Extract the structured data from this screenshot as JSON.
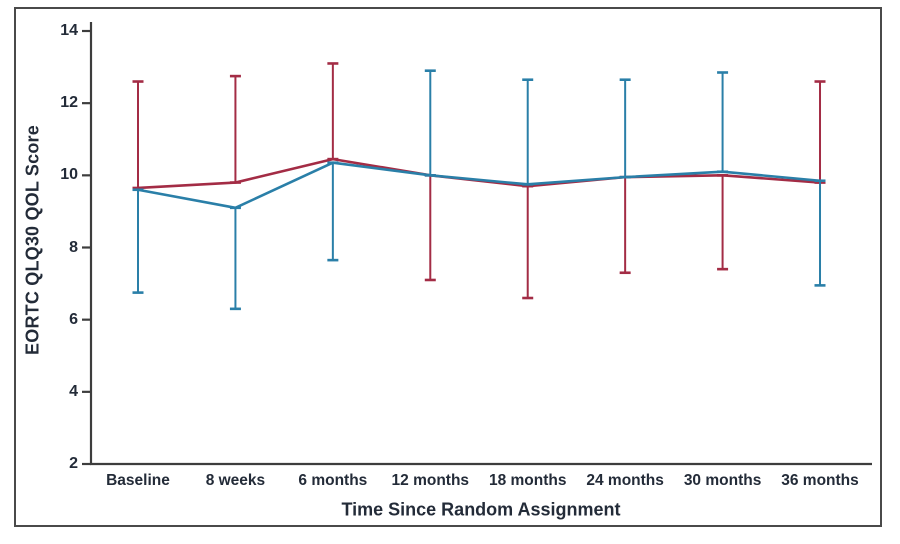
{
  "chart_data": {
    "type": "line",
    "title": "",
    "xlabel": "Time Since Random Assignment",
    "ylabel": "EORTC QLQ30 QOL Score",
    "categories": [
      "Baseline",
      "8 weeks",
      "6 months",
      "12 months",
      "18 months",
      "24 months",
      "30 months",
      "36 months"
    ],
    "yticks": [
      2,
      4,
      6,
      8,
      10,
      12,
      14
    ],
    "ylim": [
      2,
      14
    ],
    "grid": false,
    "legend_position": "none",
    "error_bars": true,
    "series": [
      {
        "name": "red-arm",
        "color": "#a32c45",
        "values": [
          9.65,
          9.8,
          10.45,
          10.0,
          9.7,
          9.95,
          10.0,
          9.8
        ],
        "upper": [
          12.6,
          12.75,
          13.1,
          null,
          null,
          null,
          null,
          12.6
        ],
        "lower": [
          null,
          null,
          null,
          7.1,
          6.6,
          7.3,
          7.4,
          null
        ]
      },
      {
        "name": "blue-arm",
        "color": "#2a7fa8",
        "values": [
          9.6,
          9.1,
          10.35,
          10.0,
          9.75,
          9.95,
          10.1,
          9.85
        ],
        "upper": [
          null,
          null,
          null,
          12.9,
          12.65,
          12.65,
          12.85,
          null
        ],
        "lower": [
          6.75,
          6.3,
          7.65,
          null,
          null,
          null,
          null,
          6.95
        ]
      }
    ],
    "colors": {
      "axis": "#3d3d3d",
      "border": "#4a4a4a",
      "text": "#232b38"
    }
  }
}
